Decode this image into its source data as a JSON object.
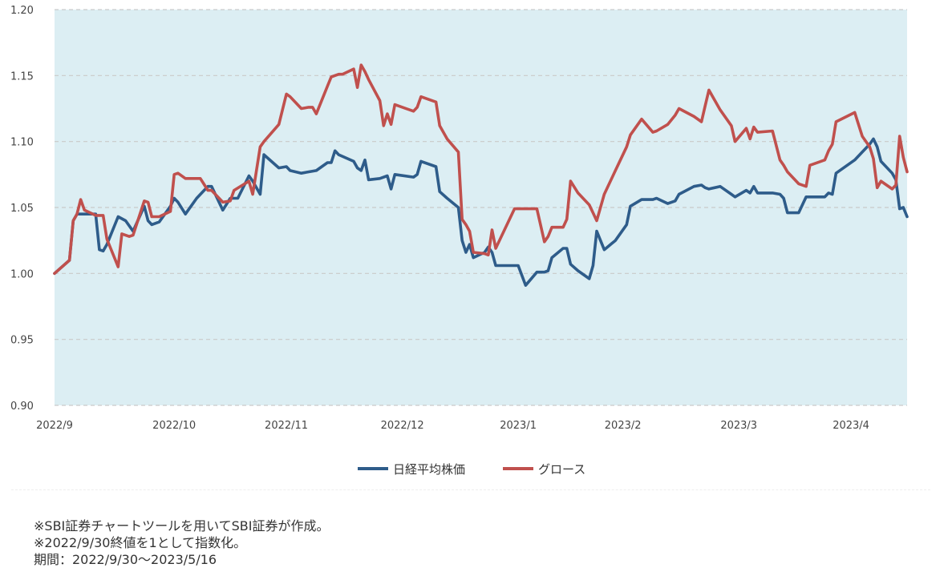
{
  "colors": {
    "nikkei": "#2E5C8A",
    "growth": "#C0504D",
    "plot_background": "#DCEEF3",
    "gridline": "#C9C9C9"
  },
  "notes": [
    "※SBI証券チャートツールを用いてSBI証券が作成。",
    "※2022/9/30終値を1として指数化。",
    "期間：2022/9/30～2023/5/16"
  ],
  "chart_data": {
    "type": "line",
    "title": "",
    "xlabel": "",
    "ylabel": "",
    "ylim": [
      0.9,
      1.2
    ],
    "yticks": [
      "0.90",
      "0.95",
      "1.00",
      "1.05",
      "1.10",
      "1.15",
      "1.20"
    ],
    "grid": "horizontal dashed",
    "legend": "bottom-center",
    "xlim": [
      "2022-09-30",
      "2023-05-16"
    ],
    "x_ticks": [
      {
        "label": "2022/9",
        "date": "2022-09-30"
      },
      {
        "label": "2022/10",
        "date": "2022-11-01"
      },
      {
        "label": "2022/11",
        "date": "2022-12-01"
      },
      {
        "label": "2022/12",
        "date": "2023-01-01"
      },
      {
        "label": "2023/1",
        "date": "2023-02-01"
      },
      {
        "label": "2023/2",
        "date": "2023-03-01"
      },
      {
        "label": "2023/3",
        "date": "2023-04-01"
      },
      {
        "label": "2023/4",
        "date": "2023-05-01"
      }
    ],
    "series": [
      {
        "name": "日経平均株価",
        "points": [
          [
            "2022-09-30",
            1.0
          ],
          [
            "2022-10-04",
            1.01
          ],
          [
            "2022-10-05",
            1.04
          ],
          [
            "2022-10-06",
            1.045
          ],
          [
            "2022-10-07",
            1.045
          ],
          [
            "2022-10-11",
            1.045
          ],
          [
            "2022-10-12",
            1.018
          ],
          [
            "2022-10-13",
            1.017
          ],
          [
            "2022-10-14",
            1.022
          ],
          [
            "2022-10-17",
            1.043
          ],
          [
            "2022-10-19",
            1.04
          ],
          [
            "2022-10-21",
            1.032
          ],
          [
            "2022-10-24",
            1.051
          ],
          [
            "2022-10-25",
            1.04
          ],
          [
            "2022-10-26",
            1.037
          ],
          [
            "2022-10-28",
            1.039
          ],
          [
            "2022-10-31",
            1.051
          ],
          [
            "2022-11-01",
            1.057
          ],
          [
            "2022-11-02",
            1.054
          ],
          [
            "2022-11-04",
            1.045
          ],
          [
            "2022-11-07",
            1.057
          ],
          [
            "2022-11-09",
            1.063
          ],
          [
            "2022-11-10",
            1.066
          ],
          [
            "2022-11-11",
            1.066
          ],
          [
            "2022-11-14",
            1.048
          ],
          [
            "2022-11-16",
            1.057
          ],
          [
            "2022-11-18",
            1.057
          ],
          [
            "2022-11-21",
            1.074
          ],
          [
            "2022-11-22",
            1.07
          ],
          [
            "2022-11-24",
            1.06
          ],
          [
            "2022-11-25",
            1.09
          ],
          [
            "2022-11-29",
            1.08
          ],
          [
            "2022-12-01",
            1.081
          ],
          [
            "2022-12-02",
            1.078
          ],
          [
            "2022-12-05",
            1.076
          ],
          [
            "2022-12-07",
            1.077
          ],
          [
            "2022-12-09",
            1.078
          ],
          [
            "2022-12-12",
            1.084
          ],
          [
            "2022-12-13",
            1.084
          ],
          [
            "2022-12-14",
            1.093
          ],
          [
            "2022-12-15",
            1.09
          ],
          [
            "2022-12-19",
            1.085
          ],
          [
            "2022-12-20",
            1.08
          ],
          [
            "2022-12-21",
            1.078
          ],
          [
            "2022-12-22",
            1.086
          ],
          [
            "2022-12-23",
            1.071
          ],
          [
            "2022-12-26",
            1.072
          ],
          [
            "2022-12-28",
            1.074
          ],
          [
            "2022-12-29",
            1.064
          ],
          [
            "2022-12-30",
            1.075
          ],
          [
            "2023-01-04",
            1.073
          ],
          [
            "2023-01-05",
            1.075
          ],
          [
            "2023-01-06",
            1.085
          ],
          [
            "2023-01-10",
            1.081
          ],
          [
            "2023-01-11",
            1.062
          ],
          [
            "2023-01-13",
            1.057
          ],
          [
            "2023-01-16",
            1.05
          ],
          [
            "2023-01-17",
            1.025
          ],
          [
            "2023-01-18",
            1.016
          ],
          [
            "2023-01-19",
            1.022
          ],
          [
            "2023-01-20",
            1.012
          ],
          [
            "2023-01-23",
            1.016
          ],
          [
            "2023-01-24",
            1.02
          ],
          [
            "2023-01-25",
            1.016
          ],
          [
            "2023-01-26",
            1.006
          ],
          [
            "2023-01-31",
            1.006
          ],
          [
            "2023-02-01",
            1.006
          ],
          [
            "2023-02-03",
            0.991
          ],
          [
            "2023-02-06",
            1.001
          ],
          [
            "2023-02-08",
            1.001
          ],
          [
            "2023-02-09",
            1.002
          ],
          [
            "2023-02-10",
            1.012
          ],
          [
            "2023-02-13",
            1.019
          ],
          [
            "2023-02-14",
            1.019
          ],
          [
            "2023-02-15",
            1.007
          ],
          [
            "2023-02-17",
            1.002
          ],
          [
            "2023-02-20",
            0.996
          ],
          [
            "2023-02-21",
            1.006
          ],
          [
            "2023-02-22",
            1.032
          ],
          [
            "2023-02-24",
            1.018
          ],
          [
            "2023-02-27",
            1.025
          ],
          [
            "2023-03-02",
            1.037
          ],
          [
            "2023-03-03",
            1.051
          ],
          [
            "2023-03-06",
            1.056
          ],
          [
            "2023-03-09",
            1.056
          ],
          [
            "2023-03-10",
            1.057
          ],
          [
            "2023-03-13",
            1.053
          ],
          [
            "2023-03-15",
            1.055
          ],
          [
            "2023-03-16",
            1.06
          ],
          [
            "2023-03-20",
            1.066
          ],
          [
            "2023-03-22",
            1.067
          ],
          [
            "2023-03-23",
            1.065
          ],
          [
            "2023-03-24",
            1.064
          ],
          [
            "2023-03-27",
            1.066
          ],
          [
            "2023-03-30",
            1.06
          ],
          [
            "2023-03-31",
            1.058
          ],
          [
            "2023-04-03",
            1.063
          ],
          [
            "2023-04-04",
            1.061
          ],
          [
            "2023-04-05",
            1.066
          ],
          [
            "2023-04-06",
            1.061
          ],
          [
            "2023-04-10",
            1.061
          ],
          [
            "2023-04-12",
            1.06
          ],
          [
            "2023-04-13",
            1.057
          ],
          [
            "2023-04-14",
            1.046
          ],
          [
            "2023-04-17",
            1.046
          ],
          [
            "2023-04-19",
            1.058
          ],
          [
            "2023-04-20",
            1.058
          ],
          [
            "2023-04-24",
            1.058
          ],
          [
            "2023-04-25",
            1.061
          ],
          [
            "2023-04-26",
            1.06
          ],
          [
            "2023-04-27",
            1.076
          ],
          [
            "2023-05-02",
            1.086
          ],
          [
            "2023-05-04",
            1.092
          ],
          [
            "2023-05-06",
            1.098
          ],
          [
            "2023-05-07",
            1.102
          ],
          [
            "2023-05-08",
            1.096
          ],
          [
            "2023-05-09",
            1.085
          ],
          [
            "2023-05-12",
            1.076
          ],
          [
            "2023-05-13",
            1.071
          ],
          [
            "2023-05-14",
            1.049
          ],
          [
            "2023-05-15",
            1.05
          ],
          [
            "2023-05-16",
            1.043
          ]
        ]
      },
      {
        "name": "グロース",
        "points": [
          [
            "2022-09-30",
            1.0
          ],
          [
            "2022-10-04",
            1.01
          ],
          [
            "2022-10-05",
            1.04
          ],
          [
            "2022-10-06",
            1.045
          ],
          [
            "2022-10-07",
            1.056
          ],
          [
            "2022-10-08",
            1.048
          ],
          [
            "2022-10-11",
            1.044
          ],
          [
            "2022-10-12",
            1.044
          ],
          [
            "2022-10-13",
            1.044
          ],
          [
            "2022-10-14",
            1.026
          ],
          [
            "2022-10-17",
            1.005
          ],
          [
            "2022-10-18",
            1.03
          ],
          [
            "2022-10-20",
            1.028
          ],
          [
            "2022-10-21",
            1.029
          ],
          [
            "2022-10-24",
            1.055
          ],
          [
            "2022-10-25",
            1.054
          ],
          [
            "2022-10-26",
            1.043
          ],
          [
            "2022-10-28",
            1.043
          ],
          [
            "2022-10-31",
            1.047
          ],
          [
            "2022-11-01",
            1.075
          ],
          [
            "2022-11-02",
            1.076
          ],
          [
            "2022-11-04",
            1.072
          ],
          [
            "2022-11-07",
            1.072
          ],
          [
            "2022-11-08",
            1.072
          ],
          [
            "2022-11-10",
            1.063
          ],
          [
            "2022-11-11",
            1.063
          ],
          [
            "2022-11-14",
            1.054
          ],
          [
            "2022-11-16",
            1.055
          ],
          [
            "2022-11-17",
            1.063
          ],
          [
            "2022-11-21",
            1.07
          ],
          [
            "2022-11-22",
            1.06
          ],
          [
            "2022-11-24",
            1.096
          ],
          [
            "2022-11-25",
            1.1
          ],
          [
            "2022-11-29",
            1.113
          ],
          [
            "2022-12-01",
            1.136
          ],
          [
            "2022-12-02",
            1.134
          ],
          [
            "2022-12-05",
            1.125
          ],
          [
            "2022-12-07",
            1.126
          ],
          [
            "2022-12-08",
            1.126
          ],
          [
            "2022-12-09",
            1.121
          ],
          [
            "2022-12-12",
            1.142
          ],
          [
            "2022-12-13",
            1.149
          ],
          [
            "2022-12-14",
            1.15
          ],
          [
            "2022-12-15",
            1.151
          ],
          [
            "2022-12-16",
            1.151
          ],
          [
            "2022-12-19",
            1.155
          ],
          [
            "2022-12-20",
            1.141
          ],
          [
            "2022-12-21",
            1.158
          ],
          [
            "2022-12-22",
            1.153
          ],
          [
            "2022-12-23",
            1.147
          ],
          [
            "2022-12-26",
            1.131
          ],
          [
            "2022-12-27",
            1.112
          ],
          [
            "2022-12-28",
            1.121
          ],
          [
            "2022-12-29",
            1.113
          ],
          [
            "2022-12-30",
            1.128
          ],
          [
            "2023-01-04",
            1.123
          ],
          [
            "2023-01-05",
            1.126
          ],
          [
            "2023-01-06",
            1.134
          ],
          [
            "2023-01-10",
            1.13
          ],
          [
            "2023-01-11",
            1.112
          ],
          [
            "2023-01-13",
            1.102
          ],
          [
            "2023-01-16",
            1.092
          ],
          [
            "2023-01-17",
            1.041
          ],
          [
            "2023-01-18",
            1.037
          ],
          [
            "2023-01-19",
            1.032
          ],
          [
            "2023-01-20",
            1.016
          ],
          [
            "2023-01-23",
            1.015
          ],
          [
            "2023-01-24",
            1.014
          ],
          [
            "2023-01-25",
            1.033
          ],
          [
            "2023-01-26",
            1.019
          ],
          [
            "2023-01-31",
            1.049
          ],
          [
            "2023-02-01",
            1.049
          ],
          [
            "2023-02-03",
            1.049
          ],
          [
            "2023-02-06",
            1.049
          ],
          [
            "2023-02-08",
            1.024
          ],
          [
            "2023-02-09",
            1.028
          ],
          [
            "2023-02-10",
            1.035
          ],
          [
            "2023-02-13",
            1.035
          ],
          [
            "2023-02-14",
            1.041
          ],
          [
            "2023-02-15",
            1.07
          ],
          [
            "2023-02-17",
            1.061
          ],
          [
            "2023-02-20",
            1.052
          ],
          [
            "2023-02-21",
            1.046
          ],
          [
            "2023-02-22",
            1.04
          ],
          [
            "2023-02-24",
            1.06
          ],
          [
            "2023-02-27",
            1.078
          ],
          [
            "2023-03-02",
            1.096
          ],
          [
            "2023-03-03",
            1.105
          ],
          [
            "2023-03-06",
            1.117
          ],
          [
            "2023-03-09",
            1.107
          ],
          [
            "2023-03-10",
            1.108
          ],
          [
            "2023-03-13",
            1.113
          ],
          [
            "2023-03-15",
            1.12
          ],
          [
            "2023-03-16",
            1.125
          ],
          [
            "2023-03-20",
            1.119
          ],
          [
            "2023-03-22",
            1.115
          ],
          [
            "2023-03-23",
            1.127
          ],
          [
            "2023-03-24",
            1.139
          ],
          [
            "2023-03-27",
            1.124
          ],
          [
            "2023-03-30",
            1.112
          ],
          [
            "2023-03-31",
            1.1
          ],
          [
            "2023-04-03",
            1.11
          ],
          [
            "2023-04-04",
            1.102
          ],
          [
            "2023-04-05",
            1.111
          ],
          [
            "2023-04-06",
            1.107
          ],
          [
            "2023-04-10",
            1.108
          ],
          [
            "2023-04-12",
            1.086
          ],
          [
            "2023-04-13",
            1.082
          ],
          [
            "2023-04-14",
            1.077
          ],
          [
            "2023-04-17",
            1.068
          ],
          [
            "2023-04-19",
            1.066
          ],
          [
            "2023-04-20",
            1.082
          ],
          [
            "2023-04-24",
            1.086
          ],
          [
            "2023-04-25",
            1.093
          ],
          [
            "2023-04-26",
            1.098
          ],
          [
            "2023-04-27",
            1.115
          ],
          [
            "2023-05-02",
            1.122
          ],
          [
            "2023-05-04",
            1.104
          ],
          [
            "2023-05-06",
            1.096
          ],
          [
            "2023-05-07",
            1.087
          ],
          [
            "2023-05-08",
            1.065
          ],
          [
            "2023-05-09",
            1.07
          ],
          [
            "2023-05-12",
            1.064
          ],
          [
            "2023-05-13",
            1.067
          ],
          [
            "2023-05-14",
            1.104
          ],
          [
            "2023-05-15",
            1.088
          ],
          [
            "2023-05-16",
            1.077
          ]
        ]
      }
    ]
  }
}
